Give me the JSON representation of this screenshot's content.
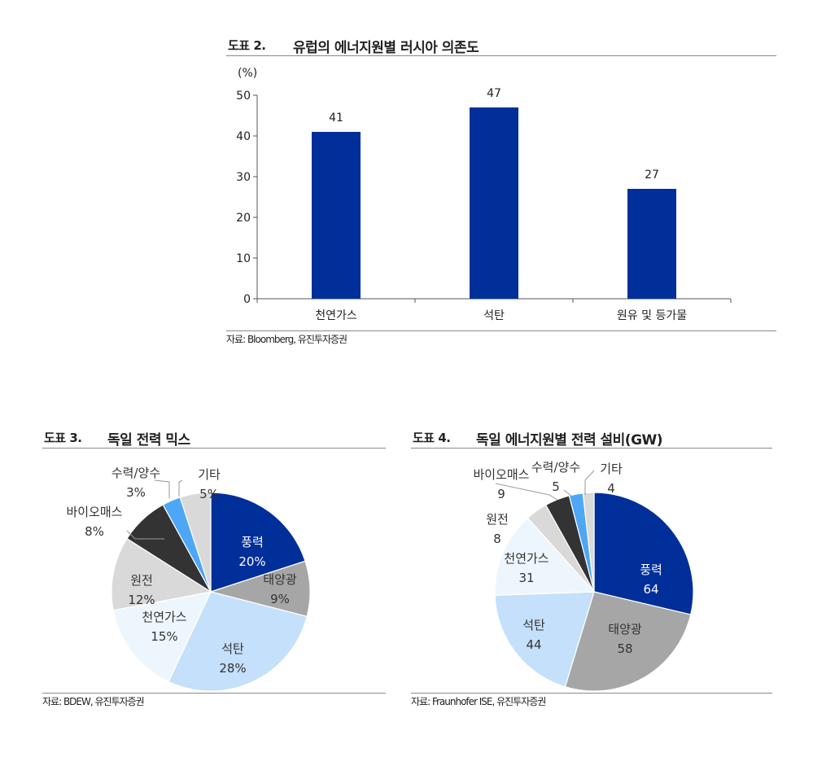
{
  "figures": [
    {
      "number": "도표 2.",
      "title": "유럽의 에너지원별 러시아 의존도",
      "source": "자료: Bloomberg, 유진투자증권"
    },
    {
      "number": "도표 3.",
      "title": "독일 전력 믹스",
      "source": "자료: BDEW, 유진투자증권"
    },
    {
      "number": "도표 4.",
      "title": "독일 에너지원별 전력 설비(GW)",
      "source": "자료: Fraunhofer ISE, 유진투자증권"
    }
  ],
  "chart_data": [
    {
      "type": "bar",
      "title": "유럽의 에너지원별 러시아 의존도",
      "unit_label": "(%)",
      "categories": [
        "천연가스",
        "석탄",
        "원유 및 등가물"
      ],
      "values": [
        41,
        47,
        27
      ],
      "ylim": [
        0,
        50
      ],
      "yticks": [
        0,
        10,
        20,
        30,
        40,
        50
      ],
      "color": "#002f9a",
      "grid": false
    },
    {
      "type": "pie",
      "title": "독일 전력 믹스",
      "slices": [
        {
          "label": "풍력",
          "value": 20,
          "text": "20%",
          "color": "#002f9a"
        },
        {
          "label": "태양광",
          "value": 9,
          "text": "9%",
          "color": "#a6a6a6"
        },
        {
          "label": "석탄",
          "value": 28,
          "text": "28%",
          "color": "#c4e0fb"
        },
        {
          "label": "천연가스",
          "value": 15,
          "text": "15%",
          "color": "#eef6fd"
        },
        {
          "label": "원전",
          "value": 12,
          "text": "12%",
          "color": "#d9d9d9"
        },
        {
          "label": "바이오매스",
          "value": 8,
          "text": "8%",
          "color": "#333333"
        },
        {
          "label": "수력/양수",
          "value": 3,
          "text": "3%",
          "color": "#4ea7f5"
        },
        {
          "label": "기타",
          "value": 5,
          "text": "5%",
          "color": "#d9d9d9"
        }
      ]
    },
    {
      "type": "pie",
      "title": "독일 에너지원별 전력 설비(GW)",
      "slices": [
        {
          "label": "풍력",
          "value": 64,
          "text": "64",
          "color": "#002f9a"
        },
        {
          "label": "태양광",
          "value": 58,
          "text": "58",
          "color": "#a6a6a6"
        },
        {
          "label": "석탄",
          "value": 44,
          "text": "44",
          "color": "#c4e0fb"
        },
        {
          "label": "천연가스",
          "value": 31,
          "text": "31",
          "color": "#eef6fd"
        },
        {
          "label": "원전",
          "value": 8,
          "text": "8",
          "color": "#d9d9d9"
        },
        {
          "label": "바이오매스",
          "value": 9,
          "text": "9",
          "color": "#333333"
        },
        {
          "label": "수력/양수",
          "value": 5,
          "text": "5",
          "color": "#4ea7f5"
        },
        {
          "label": "기타",
          "value": 4,
          "text": "4",
          "color": "#d9d9d9"
        }
      ]
    }
  ]
}
